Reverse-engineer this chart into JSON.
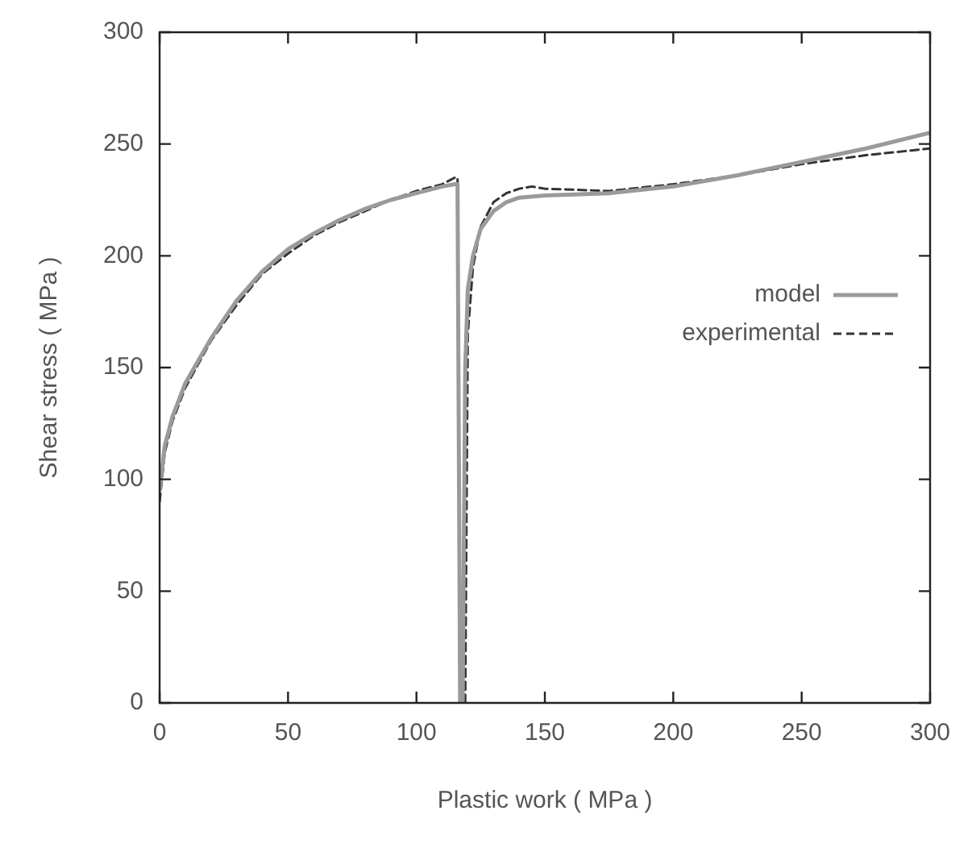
{
  "chart_data": {
    "type": "line",
    "xlabel": "Plastic work ( MPa )",
    "ylabel": "Shear stress ( MPa )",
    "xlim": [
      0,
      300
    ],
    "xticks": [
      0,
      50,
      100,
      150,
      200,
      250,
      300
    ],
    "ylim": [
      0,
      300
    ],
    "yticks": [
      0,
      50,
      100,
      150,
      200,
      250,
      300
    ],
    "grid": false,
    "legend": "right",
    "marker": "none",
    "series": [
      {
        "name": "model",
        "color": "#9a9a9a",
        "line_style": "solid",
        "x": [
          0,
          2,
          5,
          10,
          20,
          30,
          40,
          50,
          60,
          70,
          80,
          90,
          100,
          110,
          115,
          116,
          117,
          118,
          119,
          120,
          122,
          125,
          130,
          135,
          140,
          150,
          175,
          200,
          225,
          250,
          275,
          300
        ],
        "values": [
          95,
          115,
          128,
          143,
          163,
          180,
          193,
          203,
          210,
          216,
          221,
          225,
          228,
          231,
          232,
          232,
          0,
          0,
          150,
          185,
          200,
          212,
          220,
          224,
          226,
          227,
          228,
          231,
          236,
          242,
          248,
          255
        ]
      },
      {
        "name": "experimental",
        "color": "#333333",
        "line_style": "dashed",
        "x": [
          0,
          2,
          5,
          10,
          20,
          30,
          40,
          50,
          60,
          70,
          80,
          90,
          100,
          110,
          115,
          116,
          117,
          119,
          120,
          122,
          125,
          130,
          135,
          140,
          145,
          150,
          175,
          200,
          225,
          250,
          275,
          300
        ],
        "values": [
          90,
          112,
          126,
          141,
          162,
          178,
          192,
          201,
          209,
          215,
          220,
          225,
          229,
          232,
          235,
          235,
          0,
          0,
          165,
          195,
          213,
          224,
          228,
          230,
          231,
          230,
          229,
          232,
          236,
          241,
          245,
          248
        ]
      }
    ]
  }
}
